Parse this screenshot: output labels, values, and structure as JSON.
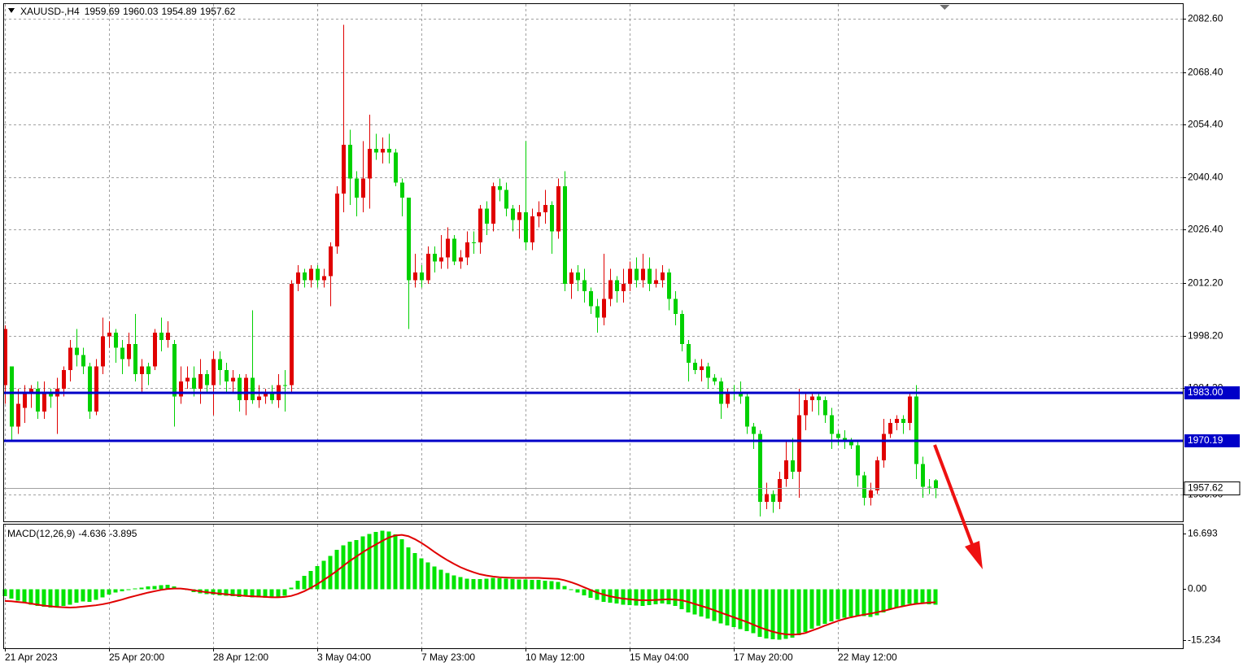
{
  "chart_data": {
    "type": "candlestick",
    "symbol": "XAUUSD-,H4",
    "categories": [
      "21 Apr 2023",
      null,
      null,
      null,
      null,
      null,
      null,
      null,
      null,
      null,
      null,
      null,
      null,
      null,
      null,
      null,
      "25 Apr 20:00",
      null,
      null,
      null,
      null,
      null,
      null,
      null,
      null,
      null,
      null,
      null,
      null,
      null,
      null,
      null,
      "28 Apr 12:00",
      null,
      null,
      null,
      null,
      null,
      null,
      null,
      null,
      null,
      null,
      null,
      null,
      null,
      null,
      null,
      "3 May 04:00",
      null,
      null,
      null,
      null,
      null,
      null,
      null,
      null,
      null,
      null,
      null,
      null,
      null,
      null,
      null,
      "7 May 23:00",
      null,
      null,
      null,
      null,
      null,
      null,
      null,
      null,
      null,
      null,
      null,
      null,
      null,
      null,
      null,
      "10 May 12:00",
      null,
      null,
      null,
      null,
      null,
      null,
      null,
      null,
      null,
      null,
      null,
      null,
      null,
      null,
      null,
      "15 May 04:00",
      null,
      null,
      null,
      null,
      null,
      null,
      null,
      null,
      null,
      null,
      null,
      null,
      null,
      null,
      null,
      "17 May 20:00",
      null,
      null,
      null,
      null,
      null,
      null,
      null,
      null,
      null,
      null,
      null,
      null,
      null,
      null,
      null,
      "22 May 12:00",
      null,
      null,
      null,
      null,
      null,
      null,
      null,
      null,
      null,
      null,
      null,
      null,
      null,
      null,
      null
    ],
    "open": [
      1985,
      1990,
      1974,
      1979,
      1983,
      1984,
      1978,
      1983,
      1982,
      1984,
      1989,
      1995,
      1993,
      1990,
      1978,
      1990,
      1998,
      1999,
      1995,
      1992,
      1996,
      1988,
      1990,
      1990,
      1999,
      1997,
      1996,
      1982,
      1986,
      1987,
      1984,
      1988,
      1985,
      1992,
      1989,
      1986,
      1987,
      1981,
      1987,
      1981,
      1982,
      1983,
      1981,
      1985,
      1985,
      2012,
      2015,
      2013,
      2016,
      2013,
      2014,
      2022,
      2036,
      2049,
      2040,
      2035,
      2040,
      2048,
      2047,
      2048,
      2047,
      2039,
      2035,
      2013,
      2015,
      2013,
      2020,
      2018,
      2019,
      2024,
      2018,
      2019,
      2023,
      2023,
      2032,
      2028,
      2038,
      2037,
      2032,
      2029,
      2031,
      2023,
      2030,
      2031,
      2033,
      2026,
      2038,
      2012,
      2015,
      2013,
      2010,
      2006,
      2003,
      2008,
      2013,
      2010,
      2012,
      2016,
      2013,
      2016,
      2012,
      2013,
      2015,
      2008,
      2004,
      1996,
      1991,
      1989,
      1990,
      1987,
      1986,
      1980,
      1983,
      1983,
      1982,
      1974,
      1972,
      1954,
      1956,
      1954,
      1960,
      1965,
      1962,
      1977,
      1981,
      1982,
      1981,
      1977,
      1972,
      1971,
      1970,
      1969,
      1961,
      1955,
      1957,
      1965,
      1972,
      1975,
      1976,
      1975,
      1982,
      1964,
      1958,
      1959.69
    ],
    "high": [
      2001,
      1990,
      1984,
      1985,
      1985,
      1986,
      1986,
      1984,
      1987,
      1990,
      1997,
      2000,
      1995,
      1991,
      1992,
      2003,
      2002,
      2000,
      1997,
      1999,
      2004,
      1992,
      1991,
      2000,
      2003,
      2002,
      1997,
      1990,
      1990,
      1990,
      1992,
      1989,
      1994,
      1994,
      1991,
      1989,
      1988,
      1988,
      2005,
      1985,
      1984,
      1985,
      1988,
      1989,
      2013,
      2017,
      2016,
      2017,
      2017,
      2016,
      2023,
      2038,
      2081,
      2053,
      2042,
      2050,
      2057,
      2052,
      2051,
      2052,
      2048,
      2040,
      2035,
      2020,
      2017,
      2022,
      2022,
      2025,
      2027,
      2025,
      2021,
      2026,
      2026,
      2033,
      2034,
      2039,
      2040,
      2039,
      2033,
      2033,
      2050,
      2032,
      2034,
      2037,
      2034,
      2040,
      2042,
      2016,
      2017,
      2016,
      2011,
      2008,
      2020,
      2016,
      2014,
      2016,
      2018,
      2019,
      2020,
      2019,
      2016,
      2017,
      2016,
      2010,
      2005,
      1997,
      1992,
      1992,
      1991,
      1988,
      1987,
      1984,
      1985,
      1986,
      1983,
      1975,
      1973,
      1959,
      1957,
      1962,
      1970,
      1971,
      1984,
      1983,
      1983,
      1983,
      1982,
      1979,
      1973,
      1973,
      1971,
      1970,
      1962,
      1959,
      1966,
      1976,
      1976,
      1977,
      1977,
      1983,
      1985,
      1966,
      1960,
      1960.03
    ],
    "low": [
      1980,
      1970,
      1972,
      1975,
      1979,
      1976,
      1976,
      1979,
      1972,
      1982,
      1986,
      1990,
      1988,
      1976,
      1977,
      1988,
      1995,
      1991,
      1988,
      1990,
      1986,
      1983,
      1985,
      1989,
      1994,
      1995,
      1974,
      1980,
      1984,
      1982,
      1980,
      1983,
      1977,
      1985,
      1983,
      1983,
      1978,
      1977,
      1980,
      1979,
      1980,
      1980,
      1979,
      1978,
      1983,
      2010,
      2011,
      2011,
      2011,
      2011,
      2006,
      2020,
      2031,
      2033,
      2030,
      2031,
      2032,
      2045,
      2044,
      2044,
      2038,
      2030,
      2000,
      2011,
      2011,
      2012,
      2015,
      2016,
      2016,
      2017,
      2016,
      2017,
      2020,
      2020,
      2025,
      2026,
      2034,
      2030,
      2026,
      2024,
      2021,
      2021,
      2027,
      2028,
      2020,
      2024,
      2010,
      2008,
      2010,
      2007,
      2004,
      1999,
      2001,
      2006,
      2007,
      2007,
      2010,
      2011,
      2011,
      2010,
      2011,
      2011,
      2005,
      2001,
      1994,
      1986,
      1988,
      1986,
      1984,
      1985,
      1976,
      1979,
      1981,
      1980,
      1972,
      1968,
      1950,
      1952,
      1951,
      1952,
      1958,
      1960,
      1955,
      1973,
      1978,
      1977,
      1975,
      1968,
      1969,
      1968,
      1968,
      1958,
      1953,
      1953,
      1956,
      1963,
      1971,
      1973,
      1972,
      1973,
      1960,
      1955,
      1956,
      1954.89
    ],
    "close": [
      2000,
      1974,
      1980,
      1983,
      1984,
      1978,
      1983,
      1982,
      1984,
      1989,
      1995,
      1993,
      1990,
      1978,
      1990,
      1998,
      1999,
      1995,
      1992,
      1996,
      1988,
      1990,
      1988,
      1999,
      1997,
      1999,
      1982,
      1986,
      1987,
      1984,
      1988,
      1985,
      1992,
      1989,
      1986,
      1987,
      1981,
      1987,
      1981,
      1982,
      1983,
      1981,
      1985,
      1985,
      2012,
      2015,
      2013,
      2016,
      2013,
      2014,
      2022,
      2036,
      2049,
      2040,
      2035,
      2040,
      2048,
      2047,
      2048,
      2047,
      2039,
      2035,
      2013,
      2015,
      2013,
      2020,
      2018,
      2019,
      2024,
      2018,
      2019,
      2023,
      2023,
      2032,
      2028,
      2038,
      2037,
      2032,
      2029,
      2031,
      2023,
      2030,
      2031,
      2033,
      2026,
      2038,
      2012,
      2015,
      2013,
      2010,
      2006,
      2003,
      2008,
      2013,
      2010,
      2012,
      2016,
      2013,
      2016,
      2012,
      2013,
      2015,
      2008,
      2004,
      1996,
      1991,
      1989,
      1990,
      1987,
      1986,
      1980,
      1983,
      1983,
      1982,
      1974,
      1972,
      1954,
      1956,
      1954,
      1960,
      1965,
      1962,
      1977,
      1981,
      1982,
      1981,
      1977,
      1972,
      1971,
      1970,
      1969,
      1961,
      1955,
      1957,
      1965,
      1972,
      1975,
      1976,
      1975,
      1982,
      1964,
      1958,
      1958,
      1957.62
    ],
    "bull_color": "#e00000",
    "bear_color": "#00d000",
    "ylim": [
      1948.75,
      2086.5
    ],
    "yticks": [
      {
        "value": 2082.6,
        "label": "2082.60"
      },
      {
        "value": 2068.4,
        "label": "2068.40"
      },
      {
        "value": 2054.4,
        "label": "2054.40"
      },
      {
        "value": 2040.4,
        "label": "2040.40"
      },
      {
        "value": 2026.4,
        "label": "2026.40"
      },
      {
        "value": 2012.2,
        "label": "2012.20"
      },
      {
        "value": 1998.2,
        "label": "1998.20"
      },
      {
        "value": 1984.2,
        "label": "1984.20"
      },
      {
        "value": 1956,
        "label": "1956.00"
      }
    ],
    "grid": true,
    "levels": [
      {
        "value": 1983,
        "label": "1983.00"
      },
      1970.19
    ],
    "level_color": "#0000c8",
    "macd": {
      "label": "MACD(12,26,9)",
      "histogram": [
        -2.1,
        -2.8,
        -3.4,
        -4.0,
        -4.6,
        -5.0,
        -5.3,
        -5.5,
        -5.4,
        -5.0,
        -4.6,
        -4.0,
        -3.6,
        -3.8,
        -3.2,
        -2.4,
        -1.6,
        -1.0,
        -0.6,
        -0.2,
        0.2,
        0.5,
        0.8,
        1.0,
        1.2,
        1.3,
        0.8,
        0.2,
        -0.3,
        -0.8,
        -1.2,
        -1.5,
        -1.6,
        -1.8,
        -2.0,
        -2.1,
        -2.3,
        -2.2,
        -2.4,
        -2.5,
        -2.6,
        -2.4,
        -2.2,
        -1.9,
        0.5,
        2.5,
        4.0,
        5.5,
        7.0,
        8.5,
        10.0,
        11.8,
        13.2,
        14.2,
        14.8,
        15.8,
        16.6,
        17.2,
        17.6,
        17.3,
        16.5,
        15.0,
        12.5,
        10.8,
        9.3,
        8.0,
        6.8,
        5.8,
        4.9,
        4.2,
        3.6,
        3.2,
        3.0,
        3.0,
        3.2,
        3.4,
        3.3,
        3.2,
        3.0,
        2.9,
        2.9,
        2.8,
        2.8,
        2.6,
        2.4,
        2.2,
        1.0,
        -0.2,
        -1.0,
        -1.8,
        -2.6,
        -3.2,
        -3.8,
        -4.0,
        -4.3,
        -4.6,
        -4.8,
        -4.9,
        -5.0,
        -4.8,
        -4.5,
        -4.3,
        -4.5,
        -5.0,
        -6.0,
        -7.0,
        -7.6,
        -8.2,
        -8.8,
        -9.5,
        -10.2,
        -10.8,
        -11.3,
        -12.0,
        -12.6,
        -13.2,
        -14.3,
        -14.8,
        -15.0,
        -15.1,
        -14.9,
        -14.5,
        -13.8,
        -12.8,
        -11.8,
        -11.0,
        -10.3,
        -9.6,
        -9.0,
        -8.5,
        -8.2,
        -8.0,
        -8.1,
        -8.3,
        -7.8,
        -6.9,
        -6.1,
        -5.5,
        -5.0,
        -4.4,
        -4.3,
        -4.4,
        -4.5,
        -4.636
      ],
      "signal": [
        -3.5,
        -3.6,
        -3.8,
        -4.0,
        -4.3,
        -4.6,
        -4.9,
        -5.1,
        -5.3,
        -5.4,
        -5.5,
        -5.4,
        -5.2,
        -5.0,
        -4.8,
        -4.5,
        -4.1,
        -3.6,
        -3.1,
        -2.5,
        -2.0,
        -1.5,
        -1.0,
        -0.6,
        -0.2,
        0.1,
        0.2,
        0.2,
        0.0,
        -0.3,
        -0.6,
        -0.9,
        -1.1,
        -1.3,
        -1.5,
        -1.7,
        -1.8,
        -2.0,
        -2.1,
        -2.2,
        -2.3,
        -2.4,
        -2.4,
        -2.3,
        -2.0,
        -1.4,
        -0.6,
        0.4,
        1.5,
        2.8,
        4.1,
        5.5,
        7.0,
        8.5,
        9.8,
        11.1,
        12.3,
        13.4,
        14.5,
        15.5,
        16.1,
        16.3,
        15.9,
        15.0,
        13.9,
        12.6,
        11.2,
        9.9,
        8.7,
        7.6,
        6.6,
        5.8,
        5.1,
        4.5,
        4.1,
        3.8,
        3.6,
        3.5,
        3.4,
        3.4,
        3.4,
        3.4,
        3.4,
        3.3,
        3.2,
        3.1,
        2.7,
        2.1,
        1.4,
        0.6,
        -0.2,
        -1.0,
        -1.6,
        -2.1,
        -2.5,
        -2.8,
        -3.0,
        -3.2,
        -3.3,
        -3.3,
        -3.2,
        -3.1,
        -3.0,
        -3.1,
        -3.3,
        -3.8,
        -4.4,
        -5.0,
        -5.6,
        -6.3,
        -7.0,
        -7.7,
        -8.4,
        -9.1,
        -9.8,
        -10.6,
        -11.4,
        -12.1,
        -12.7,
        -13.2,
        -13.5,
        -13.6,
        -13.5,
        -13.1,
        -12.4,
        -11.7,
        -10.9,
        -10.2,
        -9.5,
        -8.9,
        -8.4,
        -8.0,
        -7.6,
        -7.3,
        -6.9,
        -6.5,
        -6.0,
        -5.5,
        -5.1,
        -4.7,
        -4.4,
        -4.2,
        -4.0,
        -3.895
      ],
      "histogram_color": "#00e400",
      "signal_color": "#e00000",
      "ylim": [
        -17.67,
        19.37
      ],
      "yticks": [
        16.693,
        {
          "value": 0,
          "label": "0.00"
        },
        -15.234
      ]
    }
  }
}
